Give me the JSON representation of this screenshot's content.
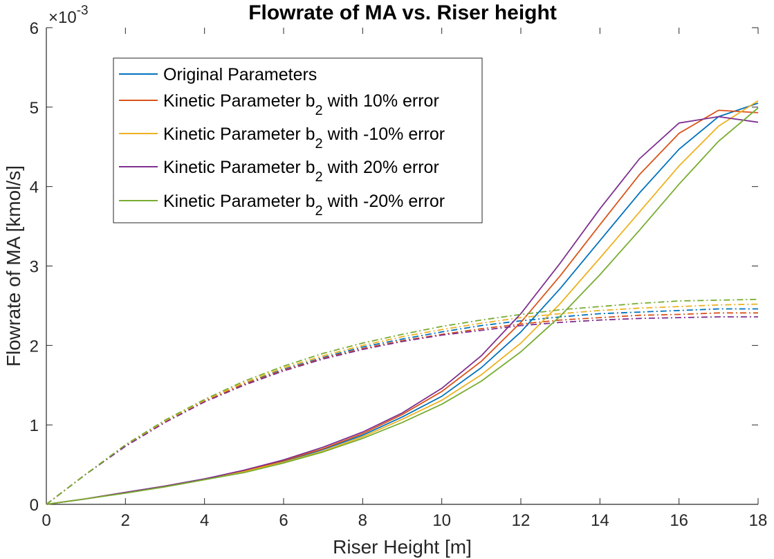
{
  "chart_data": {
    "type": "line",
    "title": "Flowrate of MA vs. Riser height",
    "xlabel": "Riser Height [m]",
    "ylabel": "Flowrate of MA [kmol/s]",
    "exponent_base": "×10",
    "exponent_power": "-3",
    "xlim": [
      0,
      18
    ],
    "ylim": [
      0,
      6
    ],
    "xticks": [
      "0",
      "2",
      "4",
      "6",
      "8",
      "10",
      "12",
      "14",
      "16",
      "18"
    ],
    "yticks": [
      "0",
      "1",
      "2",
      "3",
      "4",
      "5",
      "6"
    ],
    "legend_position": "top-left",
    "x": [
      0,
      1,
      2,
      3,
      4,
      5,
      6,
      7,
      8,
      9,
      10,
      11,
      12,
      13,
      14,
      15,
      16,
      17,
      18
    ],
    "series": [
      {
        "name": "Original Parameters",
        "legend_prefix": "Original Parameters",
        "legend_sub": "",
        "legend_suffix": "",
        "color": "#0072BD",
        "solid": [
          0,
          0.07,
          0.15,
          0.23,
          0.32,
          0.42,
          0.54,
          0.69,
          0.87,
          1.1,
          1.36,
          1.72,
          2.17,
          2.72,
          3.32,
          3.92,
          4.47,
          4.88,
          5.05
        ],
        "dashed": [
          0,
          0.38,
          0.74,
          1.04,
          1.3,
          1.52,
          1.7,
          1.85,
          1.98,
          2.08,
          2.17,
          2.25,
          2.31,
          2.36,
          2.4,
          2.42,
          2.44,
          2.46,
          2.46
        ]
      },
      {
        "name": "Kinetic Parameter b2 with 10% error",
        "legend_prefix": "Kinetic Parameter b",
        "legend_sub": "2",
        "legend_suffix": " with 10% error",
        "color": "#D95319",
        "solid": [
          0,
          0.07,
          0.15,
          0.23,
          0.32,
          0.42,
          0.55,
          0.7,
          0.89,
          1.13,
          1.42,
          1.8,
          2.29,
          2.88,
          3.52,
          4.15,
          4.67,
          4.96,
          4.93
        ],
        "dashed": [
          0,
          0.38,
          0.74,
          1.04,
          1.3,
          1.51,
          1.69,
          1.84,
          1.96,
          2.06,
          2.14,
          2.21,
          2.27,
          2.32,
          2.35,
          2.38,
          2.39,
          2.41,
          2.41
        ]
      },
      {
        "name": "Kinetic Parameter b2 with -10% error",
        "legend_prefix": "Kinetic Parameter b",
        "legend_sub": "2",
        "legend_suffix": " with -10% error",
        "color": "#EDB120",
        "solid": [
          0,
          0.07,
          0.15,
          0.22,
          0.31,
          0.41,
          0.53,
          0.67,
          0.85,
          1.07,
          1.31,
          1.63,
          2.03,
          2.53,
          3.1,
          3.68,
          4.26,
          4.76,
          5.08
        ],
        "dashed": [
          0,
          0.38,
          0.74,
          1.05,
          1.31,
          1.53,
          1.72,
          1.87,
          2.0,
          2.11,
          2.2,
          2.28,
          2.35,
          2.4,
          2.44,
          2.47,
          2.49,
          2.51,
          2.52
        ]
      },
      {
        "name": "Kinetic Parameter b2 with 20% error",
        "legend_prefix": "Kinetic Parameter b",
        "legend_sub": "2",
        "legend_suffix": " with 20% error",
        "color": "#7E2F8E",
        "solid": [
          0,
          0.07,
          0.15,
          0.23,
          0.32,
          0.43,
          0.56,
          0.72,
          0.91,
          1.15,
          1.46,
          1.87,
          2.4,
          3.04,
          3.72,
          4.35,
          4.8,
          4.88,
          4.81
        ],
        "dashed": [
          0,
          0.38,
          0.73,
          1.03,
          1.29,
          1.5,
          1.68,
          1.83,
          1.95,
          2.05,
          2.13,
          2.19,
          2.25,
          2.29,
          2.32,
          2.34,
          2.35,
          2.36,
          2.36
        ]
      },
      {
        "name": "Kinetic Parameter b2 with -20% error",
        "legend_prefix": "Kinetic Parameter b",
        "legend_sub": "2",
        "legend_suffix": " with -20% error",
        "color": "#77AC30",
        "solid": [
          0,
          0.07,
          0.14,
          0.22,
          0.31,
          0.4,
          0.52,
          0.66,
          0.83,
          1.03,
          1.26,
          1.55,
          1.92,
          2.37,
          2.89,
          3.45,
          4.03,
          4.57,
          4.99
        ],
        "dashed": [
          0,
          0.38,
          0.75,
          1.06,
          1.32,
          1.55,
          1.74,
          1.9,
          2.03,
          2.14,
          2.24,
          2.32,
          2.39,
          2.45,
          2.49,
          2.53,
          2.56,
          2.57,
          2.58
        ]
      }
    ]
  }
}
